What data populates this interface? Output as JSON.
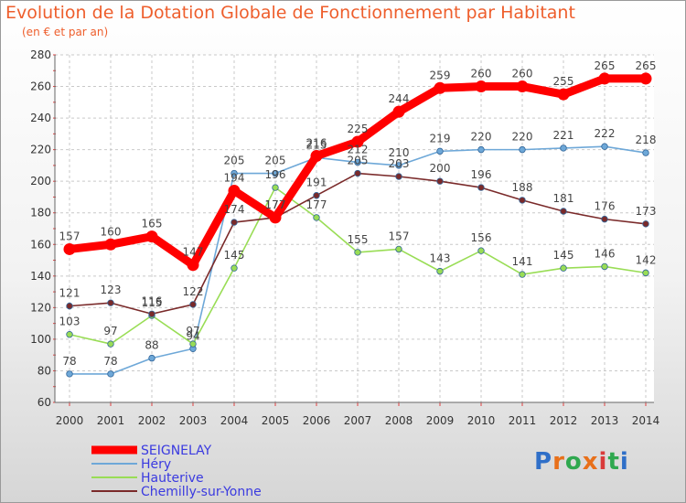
{
  "title": "Evolution de la Dotation Globale de Fonctionnement par Habitant",
  "subtitle": "(en € et par an)",
  "logo": {
    "letters": [
      "P",
      "r",
      "o",
      "x",
      "i",
      "t",
      "i"
    ],
    "colors": [
      "#2f6fc8",
      "#e8701a",
      "#2fa84f",
      "#e8701a",
      "#d93a3a",
      "#2fa84f",
      "#2f6fc8"
    ]
  },
  "chart_data": {
    "type": "line",
    "x": [
      2000,
      2001,
      2002,
      2003,
      2004,
      2005,
      2006,
      2007,
      2008,
      2009,
      2010,
      2011,
      2012,
      2013,
      2014
    ],
    "ylim": [
      60,
      280
    ],
    "yticks": [
      60,
      80,
      100,
      120,
      140,
      160,
      180,
      200,
      220,
      240,
      260,
      280
    ],
    "grid": true,
    "legend_position": "bottom-left",
    "series": [
      {
        "name": "SEIGNELAY",
        "color": "#ff0000",
        "values": [
          157,
          160,
          165,
          147,
          194,
          177,
          216,
          225,
          244,
          259,
          260,
          260,
          255,
          265,
          265
        ]
      },
      {
        "name": "Héry",
        "color": "#6ea8d8",
        "values": [
          78,
          78,
          88,
          94,
          205,
          205,
          215,
          212,
          210,
          219,
          220,
          220,
          221,
          222,
          218
        ]
      },
      {
        "name": "Hauterive",
        "color": "#99dd55",
        "values": [
          103,
          97,
          115,
          97,
          145,
          196,
          177,
          155,
          157,
          143,
          156,
          141,
          145,
          146,
          142
        ]
      },
      {
        "name": "Chemilly-sur-Yonne",
        "color": "#7a2a2a",
        "values": [
          121,
          123,
          116,
          122,
          174,
          177,
          191,
          205,
          203,
          200,
          196,
          188,
          181,
          176,
          173
        ]
      }
    ]
  }
}
